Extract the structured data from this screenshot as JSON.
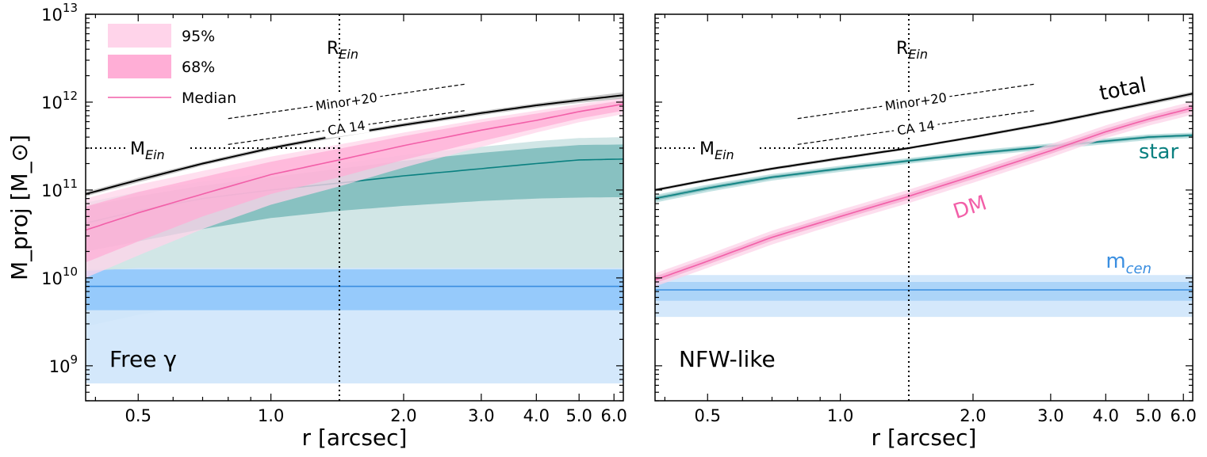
{
  "chart_data": [
    {
      "type": "area",
      "panel_label": "Free γ",
      "xlabel": "r [arcsec]",
      "ylabel": "M_proj [M_⊙]",
      "xscale": "log",
      "yscale": "log",
      "xlim": [
        0.38,
        6.3
      ],
      "ylim": [
        400000000.0,
        10000000000000.0
      ],
      "x_ticks": [
        0.5,
        1.0,
        2.0,
        3.0,
        4.0,
        5.0,
        6.0
      ],
      "x_tick_labels": [
        "0.5",
        "1.0",
        "2.0",
        "3.0",
        "4.0",
        "5.0",
        "6.0"
      ],
      "y_ticks": [
        1000000000.0,
        10000000000.0,
        100000000000.0,
        1000000000000.0,
        10000000000000.0
      ],
      "y_tick_labels": [
        {
          "base": "10",
          "exp": "9"
        },
        {
          "base": "10",
          "exp": "10"
        },
        {
          "base": "10",
          "exp": "11"
        },
        {
          "base": "10",
          "exp": "12"
        },
        {
          "base": "10",
          "exp": "13"
        }
      ],
      "reference_lines": {
        "R_Ein": {
          "x": 1.43,
          "label": "R",
          "sub": "Ein"
        },
        "M_Ein": {
          "y": 300000000000.0,
          "label": "M",
          "sub": "Ein"
        }
      },
      "legend": {
        "position": "upper-left",
        "entries": [
          {
            "label": "95%",
            "kind": "band",
            "color": "#ffd4ea"
          },
          {
            "label": "68%",
            "kind": "band",
            "color": "#ffaed6"
          },
          {
            "label": "Median",
            "kind": "line",
            "color": "#f25fa8"
          }
        ]
      },
      "annotations": [
        {
          "text": "Minor+20",
          "x_from": 0.8,
          "x_to": 2.75,
          "y_from": 650000000000.0,
          "y_to": 1600000000000.0
        },
        {
          "text": "CA 14",
          "x_from": 0.8,
          "x_to": 2.75,
          "y_from": 330000000000.0,
          "y_to": 800000000000.0
        }
      ],
      "x": [
        0.38,
        0.5,
        0.7,
        1.0,
        1.43,
        2.0,
        3.0,
        4.0,
        5.0,
        6.3
      ],
      "series": [
        {
          "name": "total",
          "color": "#000000",
          "median": [
            90000000000.0,
            130000000000.0,
            200000000000.0,
            300000000000.0,
            420000000000.0,
            550000000000.0,
            750000000000.0,
            920000000000.0,
            1050000000000.0,
            1200000000000.0
          ],
          "lo68": [
            85000000000.0,
            122000000000.0,
            190000000000.0,
            285000000000.0,
            400000000000.0,
            525000000000.0,
            710000000000.0,
            870000000000.0,
            980000000000.0,
            1100000000000.0
          ],
          "hi68": [
            95000000000.0,
            138000000000.0,
            210000000000.0,
            315000000000.0,
            440000000000.0,
            580000000000.0,
            790000000000.0,
            970000000000.0,
            1120000000000.0,
            1300000000000.0
          ]
        },
        {
          "name": "DM",
          "color": "#f25fa8",
          "band_color": "#ffaed6",
          "band95_color": "#ffd4ea",
          "median": [
            35000000000.0,
            55000000000.0,
            90000000000.0,
            150000000000.0,
            220000000000.0,
            320000000000.0,
            480000000000.0,
            620000000000.0,
            780000000000.0,
            950000000000.0
          ],
          "lo68": [
            15000000000.0,
            26000000000.0,
            50000000000.0,
            90000000000.0,
            140000000000.0,
            220000000000.0,
            360000000000.0,
            500000000000.0,
            650000000000.0,
            800000000000.0
          ],
          "hi68": [
            65000000000.0,
            95000000000.0,
            140000000000.0,
            210000000000.0,
            295000000000.0,
            410000000000.0,
            590000000000.0,
            740000000000.0,
            880000000000.0,
            1050000000000.0
          ],
          "lo95": [
            10000000000.0,
            18000000000.0,
            36000000000.0,
            68000000000.0,
            110000000000.0,
            180000000000.0,
            310000000000.0,
            450000000000.0,
            590000000000.0,
            730000000000.0
          ],
          "hi95": [
            80000000000.0,
            115000000000.0,
            165000000000.0,
            240000000000.0,
            330000000000.0,
            450000000000.0,
            640000000000.0,
            800000000000.0,
            950000000000.0,
            1120000000000.0
          ]
        },
        {
          "name": "star",
          "color": "#0a8080",
          "band_color": "#7fbcbc",
          "band95_color": "#cfe5e5",
          "median": [
            42000000000.0,
            58000000000.0,
            80000000000.0,
            100000000000.0,
            120000000000.0,
            145000000000.0,
            175000000000.0,
            200000000000.0,
            220000000000.0,
            225000000000.0
          ],
          "lo68": [
            20000000000.0,
            26000000000.0,
            36000000000.0,
            48000000000.0,
            58000000000.0,
            66000000000.0,
            75000000000.0,
            80000000000.0,
            82000000000.0,
            83000000000.0
          ],
          "hi68": [
            65000000000.0,
            85000000000.0,
            112000000000.0,
            140000000000.0,
            175000000000.0,
            215000000000.0,
            265000000000.0,
            300000000000.0,
            325000000000.0,
            330000000000.0
          ],
          "lo95": [
            12000000000.0,
            13000000000.0,
            13000000000.0,
            13000000000.0,
            13000000000.0,
            13000000000.0,
            13000000000.0,
            13000000000.0,
            13000000000.0,
            13000000000.0
          ],
          "hi95": [
            72000000000.0,
            95000000000.0,
            125000000000.0,
            160000000000.0,
            200000000000.0,
            250000000000.0,
            310000000000.0,
            360000000000.0,
            390000000000.0,
            400000000000.0
          ]
        },
        {
          "name": "m_cen",
          "color": "#3a8ee0",
          "band_color": "#8fc6fb",
          "band95_color": "#d2e7fb",
          "median": [
            8000000000.0,
            8000000000.0,
            8000000000.0,
            8000000000.0,
            8000000000.0,
            8000000000.0,
            8000000000.0,
            8000000000.0,
            8000000000.0,
            8000000000.0
          ],
          "lo68": [
            4300000000.0,
            4300000000.0,
            4300000000.0,
            4300000000.0,
            4300000000.0,
            4300000000.0,
            4300000000.0,
            4300000000.0,
            4300000000.0,
            4300000000.0
          ],
          "hi68": [
            12500000000.0,
            12500000000.0,
            12500000000.0,
            12500000000.0,
            12500000000.0,
            12500000000.0,
            12500000000.0,
            12500000000.0,
            12500000000.0,
            12500000000.0
          ],
          "lo95": [
            630000000.0,
            630000000.0,
            630000000.0,
            630000000.0,
            630000000.0,
            630000000.0,
            630000000.0,
            630000000.0,
            630000000.0,
            630000000.0
          ],
          "hi95": [
            13000000000.0,
            13000000000.0,
            13000000000.0,
            13000000000.0,
            13000000000.0,
            13000000000.0,
            13000000000.0,
            13000000000.0,
            13000000000.0,
            13000000000.0
          ]
        },
        {
          "name": "m_cen_wide",
          "color": "#9bc9e4",
          "lo95": [
            2800000000.0,
            3800000000.0,
            5000000000.0,
            6300000000.0,
            7500000000.0,
            8500000000.0,
            9500000000.0,
            10000000000.0,
            10500000000.0,
            11000000000.0
          ],
          "hi95": [
            13000000000.0,
            13000000000.0,
            13000000000.0,
            13000000000.0,
            13000000000.0,
            13000000000.0,
            13000000000.0,
            13000000000.0,
            13000000000.0,
            13000000000.0
          ]
        }
      ]
    },
    {
      "type": "area",
      "panel_label": "NFW-like",
      "xlabel": "r [arcsec]",
      "xscale": "log",
      "yscale": "log",
      "xlim": [
        0.38,
        6.3
      ],
      "ylim": [
        400000000.0,
        10000000000000.0
      ],
      "x_ticks": [
        0.5,
        1.0,
        2.0,
        3.0,
        4.0,
        5.0,
        6.0
      ],
      "x_tick_labels": [
        "0.5",
        "1.0",
        "2.0",
        "3.0",
        "4.0",
        "5.0",
        "6.0"
      ],
      "reference_lines": {
        "R_Ein": {
          "x": 1.43,
          "label": "R",
          "sub": "Ein"
        },
        "M_Ein": {
          "y": 300000000000.0,
          "label": "M",
          "sub": "Ein"
        }
      },
      "annotations": [
        {
          "text": "Minor+20",
          "x_from": 0.8,
          "x_to": 2.75,
          "y_from": 650000000000.0,
          "y_to": 1600000000000.0
        },
        {
          "text": "CA 14",
          "x_from": 0.8,
          "x_to": 2.75,
          "y_from": 330000000000.0,
          "y_to": 800000000000.0
        }
      ],
      "curve_labels": [
        {
          "text": "total",
          "color": "#000000"
        },
        {
          "text": "star",
          "color": "#0a8080"
        },
        {
          "text": "DM",
          "color": "#f25fa8"
        },
        {
          "text": "m",
          "sub": "cen",
          "color": "#3a8ee0"
        }
      ],
      "x": [
        0.38,
        0.5,
        0.7,
        1.0,
        1.43,
        2.0,
        3.0,
        4.0,
        5.0,
        6.3
      ],
      "series": [
        {
          "name": "total",
          "color": "#000000",
          "median": [
            100000000000.0,
            130000000000.0,
            175000000000.0,
            230000000000.0,
            300000000000.0,
            400000000000.0,
            580000000000.0,
            780000000000.0,
            980000000000.0,
            1250000000000.0
          ],
          "lo68": [
            96000000000.0,
            125000000000.0,
            168000000000.0,
            220000000000.0,
            290000000000.0,
            385000000000.0,
            555000000000.0,
            745000000000.0,
            930000000000.0,
            1180000000000.0
          ],
          "hi68": [
            104000000000.0,
            135000000000.0,
            182000000000.0,
            240000000000.0,
            310000000000.0,
            415000000000.0,
            605000000000.0,
            815000000000.0,
            1030000000000.0,
            1320000000000.0
          ]
        },
        {
          "name": "DM",
          "color": "#f25fa8",
          "band_color": "#f7a8d0",
          "band95_color": "#fcd3e8",
          "median": [
            9500000000.0,
            15500000000.0,
            29000000000.0,
            50000000000.0,
            85000000000.0,
            145000000000.0,
            280000000000.0,
            460000000000.0,
            640000000000.0,
            860000000000.0
          ],
          "lo68": [
            8700000000.0,
            14200000000.0,
            26500000000.0,
            46000000000.0,
            78000000000.0,
            133000000000.0,
            258000000000.0,
            425000000000.0,
            590000000000.0,
            790000000000.0
          ],
          "hi68": [
            10400000000.0,
            16900000000.0,
            31500000000.0,
            54500000000.0,
            92500000000.0,
            158000000000.0,
            305000000000.0,
            500000000000.0,
            695000000000.0,
            935000000000.0
          ],
          "lo95": [
            8000000000.0,
            13000000000.0,
            24000000000.0,
            42000000000.0,
            71000000000.0,
            121000000000.0,
            235000000000.0,
            390000000000.0,
            540000000000.0,
            720000000000.0
          ],
          "hi95": [
            11300000000.0,
            18400000000.0,
            34500000000.0,
            59500000000.0,
            101000000000.0,
            172000000000.0,
            333000000000.0,
            545000000000.0,
            760000000000.0,
            1020000000000.0
          ]
        },
        {
          "name": "star",
          "color": "#0a8080",
          "band_color": "#7fbcbc",
          "band95_color": "#bfe0e0",
          "median": [
            80000000000.0,
            105000000000.0,
            140000000000.0,
            175000000000.0,
            215000000000.0,
            260000000000.0,
            315000000000.0,
            360000000000.0,
            400000000000.0,
            420000000000.0
          ],
          "lo68": [
            76000000000.0,
            100000000000.0,
            134000000000.0,
            168000000000.0,
            207000000000.0,
            250000000000.0,
            303000000000.0,
            346000000000.0,
            385000000000.0,
            405000000000.0
          ],
          "hi68": [
            84000000000.0,
            110000000000.0,
            146000000000.0,
            182000000000.0,
            223000000000.0,
            270000000000.0,
            327000000000.0,
            374000000000.0,
            415000000000.0,
            435000000000.0
          ],
          "lo95": [
            72000000000.0,
            95000000000.0,
            128000000000.0,
            161000000000.0,
            199000000000.0,
            240000000000.0,
            291000000000.0,
            332000000000.0,
            370000000000.0,
            390000000000.0
          ],
          "hi95": [
            88000000000.0,
            115000000000.0,
            152000000000.0,
            189000000000.0,
            231000000000.0,
            280000000000.0,
            339000000000.0,
            388000000000.0,
            430000000000.0,
            450000000000.0
          ]
        },
        {
          "name": "m_cen",
          "color": "#3a8ee0",
          "band_color": "#a7d2f7",
          "band95_color": "#d2e7fb",
          "median": [
            7300000000.0,
            7300000000.0,
            7300000000.0,
            7300000000.0,
            7300000000.0,
            7300000000.0,
            7300000000.0,
            7300000000.0,
            7300000000.0,
            7300000000.0
          ],
          "lo68": [
            5500000000.0,
            5500000000.0,
            5500000000.0,
            5500000000.0,
            5500000000.0,
            5500000000.0,
            5500000000.0,
            5500000000.0,
            5500000000.0,
            5500000000.0
          ],
          "hi68": [
            9000000000.0,
            9000000000.0,
            9000000000.0,
            9000000000.0,
            9000000000.0,
            9000000000.0,
            9000000000.0,
            9000000000.0,
            9000000000.0,
            9000000000.0
          ],
          "lo95": [
            3600000000.0,
            3600000000.0,
            3600000000.0,
            3600000000.0,
            3600000000.0,
            3600000000.0,
            3600000000.0,
            3600000000.0,
            3600000000.0,
            3600000000.0
          ],
          "hi95": [
            10800000000.0,
            10800000000.0,
            10800000000.0,
            10800000000.0,
            10800000000.0,
            10800000000.0,
            10800000000.0,
            10800000000.0,
            10800000000.0,
            10800000000.0
          ]
        }
      ]
    }
  ]
}
